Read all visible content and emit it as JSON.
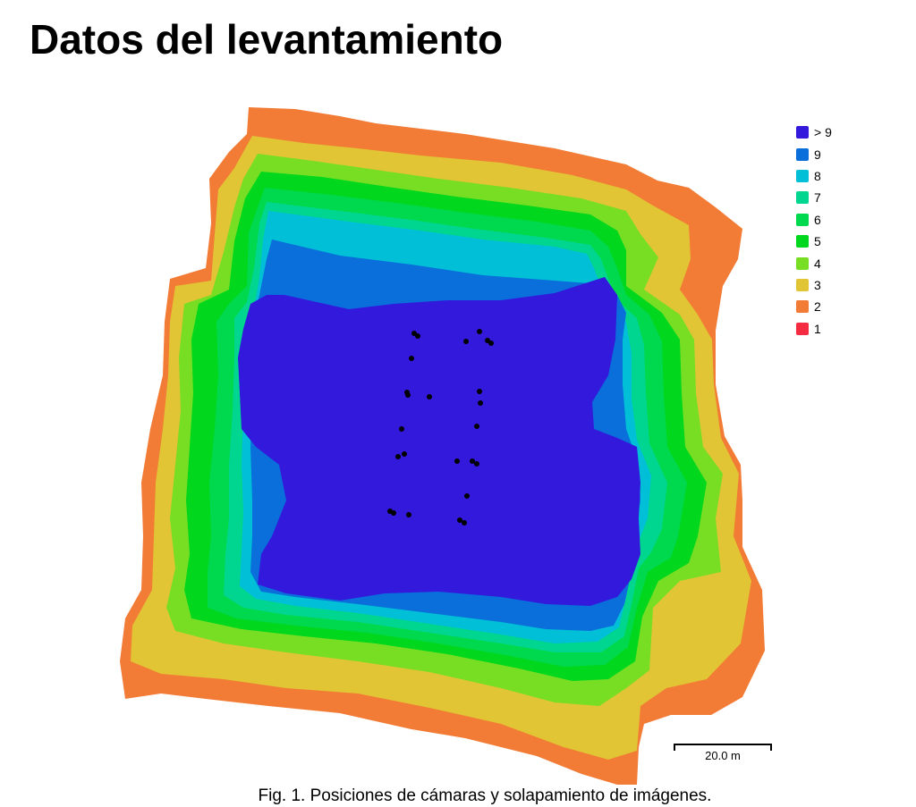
{
  "document": {
    "title": "Datos del levantamiento",
    "caption": "Fig. 1. Posiciones de cámaras y solapamiento de imágenes."
  },
  "map": {
    "colors": {
      "gt9": "#3219DB",
      "v9": "#0A6EDB",
      "v8": "#00BFD6",
      "v7": "#00D68F",
      "v6": "#00D84E",
      "v5": "#00D71D",
      "v4": "#77DE23",
      "v3": "#E1C534",
      "v2": "#F27B35",
      "v1": "#F52B42",
      "camera": "#000000"
    }
  },
  "legend": {
    "items": [
      {
        "label": "> 9",
        "color": "#3219DB"
      },
      {
        "label": "9",
        "color": "#0A6EDB"
      },
      {
        "label": "8",
        "color": "#00BFD6"
      },
      {
        "label": "7",
        "color": "#00D68F"
      },
      {
        "label": "6",
        "color": "#00D84E"
      },
      {
        "label": "5",
        "color": "#00D71D"
      },
      {
        "label": "4",
        "color": "#77DE23"
      },
      {
        "label": "3",
        "color": "#E1C534"
      },
      {
        "label": "2",
        "color": "#F27B35"
      },
      {
        "label": "1",
        "color": "#F52B42"
      }
    ]
  },
  "scale_bar": {
    "label": "20.0 m"
  }
}
